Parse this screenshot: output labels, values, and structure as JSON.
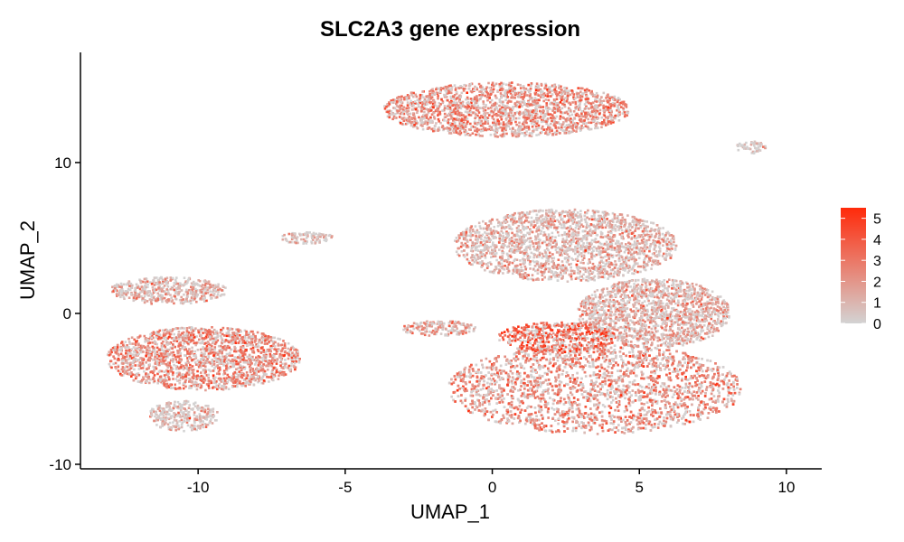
{
  "chart_data": {
    "type": "scatter",
    "title": "SLC2A3 gene expression",
    "xlabel": "UMAP_1",
    "ylabel": "UMAP_2",
    "xlim": [
      -14,
      11.2
    ],
    "ylim": [
      -10.3,
      17.3
    ],
    "x_ticks": [
      -10,
      -5,
      0,
      5,
      10
    ],
    "y_ticks": [
      -10,
      0,
      10
    ],
    "grid": false,
    "legend": {
      "placement": "right",
      "min": 0,
      "max": 5.5,
      "labels": [
        5,
        4,
        3,
        2,
        1,
        0
      ],
      "low_color": "#d3d3d3",
      "high_color": "#ff2a0a"
    },
    "clusters": [
      {
        "name": "top-cluster",
        "center": [
          0.5,
          13.5
        ],
        "radii": [
          4.2,
          1.8
        ],
        "mean_expression": 2.6
      },
      {
        "name": "left-upper-cluster",
        "center": [
          -11.0,
          1.5
        ],
        "radii": [
          2.0,
          0.9
        ],
        "mean_expression": 1.4
      },
      {
        "name": "left-main-cluster",
        "center": [
          -9.8,
          -3.0
        ],
        "radii": [
          3.3,
          2.1
        ],
        "mean_expression": 2.7
      },
      {
        "name": "left-tail-cluster",
        "center": [
          -10.5,
          -6.8
        ],
        "radii": [
          1.2,
          1.0
        ],
        "mean_expression": 0.8
      },
      {
        "name": "right-upper-cluster",
        "center": [
          2.5,
          4.5
        ],
        "radii": [
          3.8,
          2.4
        ],
        "mean_expression": 1.5
      },
      {
        "name": "right-middle-cluster",
        "center": [
          5.5,
          0.0
        ],
        "radii": [
          2.6,
          2.3
        ],
        "mean_expression": 1.6
      },
      {
        "name": "right-lower-cluster",
        "center": [
          3.5,
          -5.0
        ],
        "radii": [
          5.0,
          3.0
        ],
        "mean_expression": 2.5
      },
      {
        "name": "right-hotspot-cluster",
        "center": [
          2.2,
          -1.6
        ],
        "radii": [
          2.0,
          1.0
        ],
        "mean_expression": 4.0
      },
      {
        "name": "bridge-streak",
        "center": [
          -1.8,
          -1.0
        ],
        "radii": [
          1.3,
          0.5
        ],
        "mean_expression": 2.0
      },
      {
        "name": "small-island-mid",
        "center": [
          -6.3,
          5.0
        ],
        "radii": [
          0.9,
          0.4
        ],
        "mean_expression": 1.0
      },
      {
        "name": "small-island-right",
        "center": [
          8.8,
          11.0
        ],
        "radii": [
          0.5,
          0.4
        ],
        "mean_expression": 0.5
      }
    ]
  }
}
